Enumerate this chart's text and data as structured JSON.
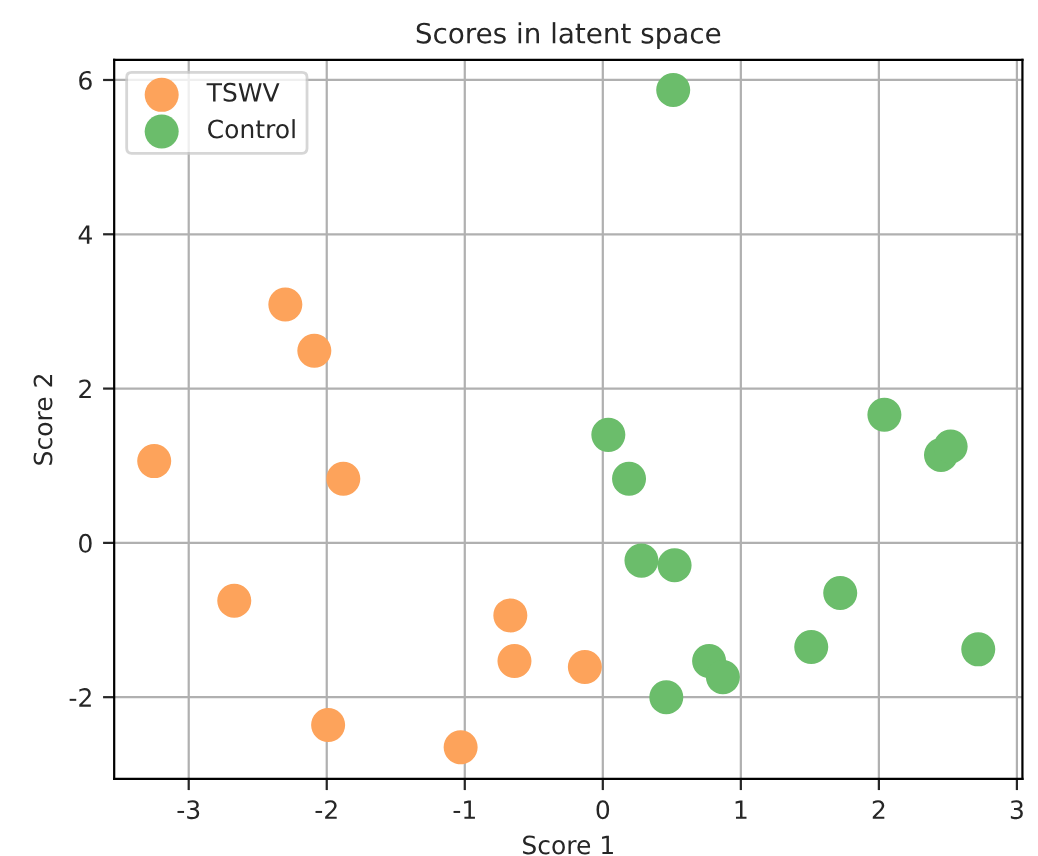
{
  "chart_data": {
    "type": "scatter",
    "title": "Scores in latent space",
    "xlabel": "Score 1",
    "ylabel": "Score 2",
    "xlim": [
      -3.54,
      3.04
    ],
    "ylim": [
      -3.06,
      6.26
    ],
    "xticks": [
      -3,
      -2,
      -1,
      0,
      1,
      2,
      3
    ],
    "yticks": [
      -2,
      0,
      2,
      4,
      6
    ],
    "grid": true,
    "legend": "top left",
    "marker": "circle",
    "series": [
      {
        "name": "TSWV",
        "color": "#fda35b",
        "x": [
          -3.25,
          -2.3,
          -2.09,
          -1.88,
          -2.67,
          -1.99,
          -1.03,
          -0.67,
          -0.64,
          -0.13
        ],
        "values": [
          1.06,
          3.09,
          2.49,
          0.83,
          -0.75,
          -2.36,
          -2.65,
          -0.94,
          -1.53,
          -1.61
        ]
      },
      {
        "name": "Control",
        "color": "#6bbd6b",
        "x": [
          0.51,
          0.04,
          0.19,
          0.28,
          0.52,
          2.04,
          2.45,
          2.52,
          1.72,
          1.51,
          2.72,
          0.77,
          0.87,
          0.46
        ],
        "values": [
          5.87,
          1.4,
          0.83,
          -0.23,
          -0.29,
          1.66,
          1.14,
          1.25,
          -0.65,
          -1.35,
          -1.38,
          -1.53,
          -1.74,
          -2.0
        ]
      }
    ]
  }
}
